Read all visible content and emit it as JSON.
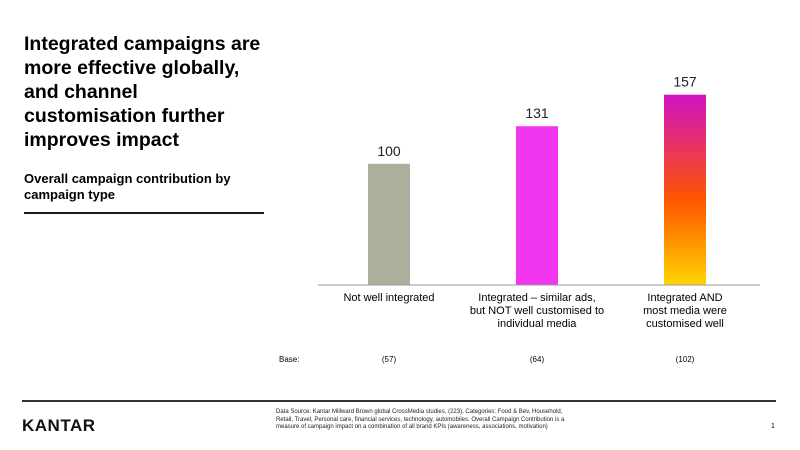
{
  "headline": "Integrated campaigns are more effective globally, and channel customisation further improves impact",
  "subtitle": "Overall campaign contribution by campaign type",
  "chart_data": {
    "type": "bar",
    "categories": [
      "Not well integrated",
      "Integrated – similar ads, but NOT well customised to individual media",
      "Integrated AND most media were customised well"
    ],
    "category_lines": [
      [
        "Not well integrated"
      ],
      [
        "Integrated – similar ads,",
        "but NOT well customised to",
        "individual media"
      ],
      [
        "Integrated AND",
        "most media were",
        "customised well"
      ]
    ],
    "values": [
      100,
      131,
      157
    ],
    "data_labels": [
      "100",
      "131",
      "157"
    ],
    "ylim": [
      0,
      165
    ],
    "grid": false,
    "legend": "none",
    "bar_colors": [
      "#ADAE9C",
      "#F236F0",
      "gradient"
    ],
    "gradient_colors": [
      "#D013C4",
      "#FF5400",
      "#FFD400"
    ]
  },
  "base": {
    "label": "Base:",
    "values": [
      "(57)",
      "(64)",
      "(102)"
    ]
  },
  "logo_text": "KANTAR",
  "source_text": "Data Source: Kantar Millward Brown global CrossMedia studies, (223). Categories: Food & Bev, Household, Retail, Travel, Personal care, financial services, technology, automobiles. Overall Campaign Contribution is a measure of campaign impact on a combination of all brand KPIs (awareness, associations, motivation)",
  "page_number": "1"
}
